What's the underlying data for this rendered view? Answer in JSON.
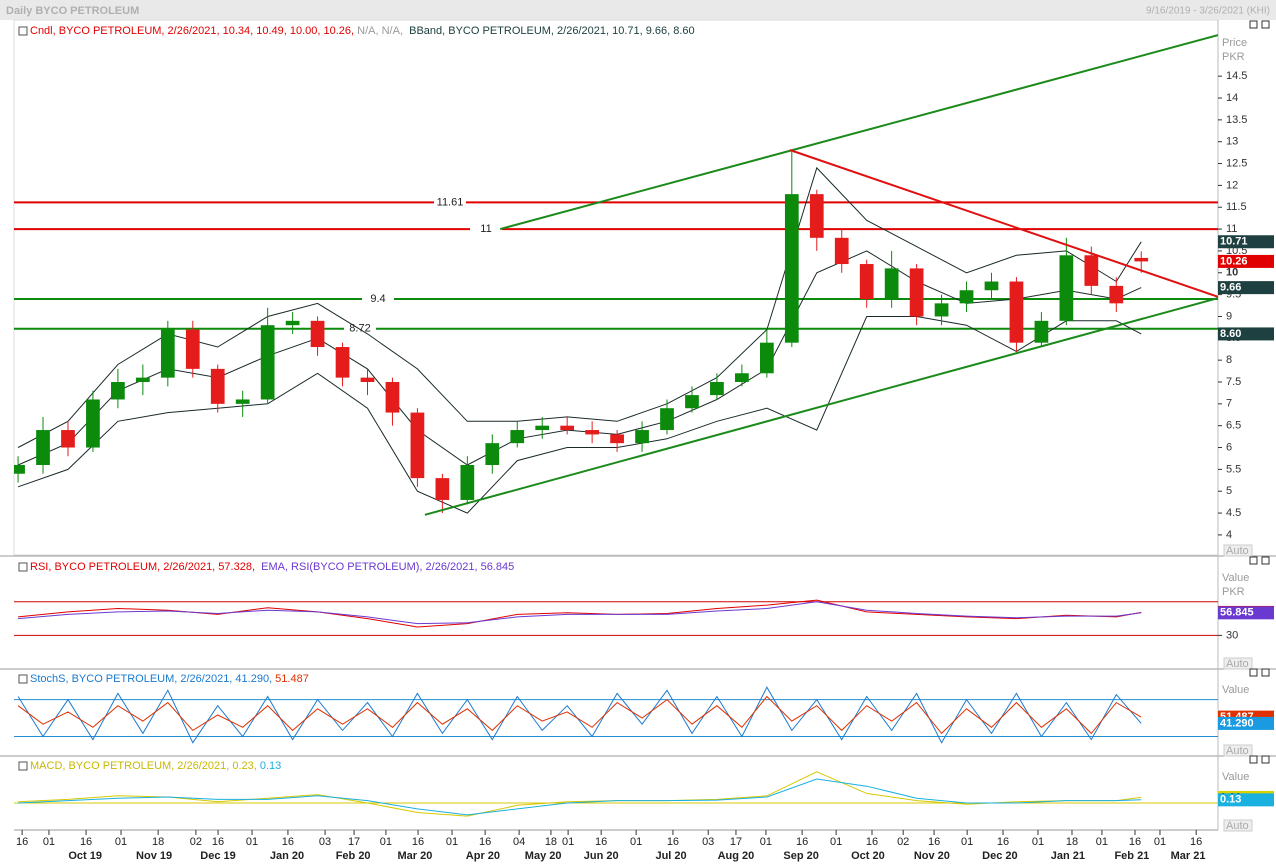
{
  "chart_data": [
    {
      "type": "candlestick",
      "title": "Daily BYCO PETROLEUM",
      "date_range": "9/16/2019 - 3/26/2021 (KHI)",
      "y_label": "Price",
      "y_unit": "PKR",
      "scale_mode": "Auto",
      "legend": [
        {
          "text": "Cndl, BYCO PETROLEUM, 2/26/2021, 10.34, 10.49, 10.00, 10.26,",
          "color": "#e00000"
        },
        {
          "text": " N/A, N/A,",
          "color": "#9a9a9a"
        },
        {
          "text": "  BBand, BYCO PETROLEUM, 2/26/2021, 10.71, 9.66, 8.60",
          "color": "#1e4040"
        }
      ],
      "xlim": [
        -1.3,
        384.6
      ],
      "ylim": [
        3.54,
        15.74
      ],
      "yticks": [
        4,
        4.5,
        5,
        5.5,
        6,
        6.5,
        7,
        7.5,
        8,
        8.5,
        9,
        9.5,
        10,
        10.5,
        11,
        11.5,
        12,
        12.5,
        13,
        13.5,
        14,
        14.5
      ],
      "xticks": [
        {
          "value": 1.3,
          "label": "16"
        },
        {
          "value": 9.9,
          "label": "01"
        },
        {
          "value": 21.8,
          "label": "16"
        },
        {
          "value": 33,
          "label": "01"
        },
        {
          "value": 44.9,
          "label": "18"
        },
        {
          "value": 57,
          "label": "02"
        },
        {
          "value": 64.1,
          "label": "16"
        },
        {
          "value": 75,
          "label": "01"
        },
        {
          "value": 86.5,
          "label": "16"
        },
        {
          "value": 98.4,
          "label": "03"
        },
        {
          "value": 107.7,
          "label": "17"
        },
        {
          "value": 117.9,
          "label": "01"
        },
        {
          "value": 128.2,
          "label": "16"
        },
        {
          "value": 139.1,
          "label": "01"
        },
        {
          "value": 149.7,
          "label": "16"
        },
        {
          "value": 160.6,
          "label": "04"
        },
        {
          "value": 170.8,
          "label": "18"
        },
        {
          "value": 176.3,
          "label": "01"
        },
        {
          "value": 186.9,
          "label": "16"
        },
        {
          "value": 198.1,
          "label": "01"
        },
        {
          "value": 209.9,
          "label": "16"
        },
        {
          "value": 221.2,
          "label": "03"
        },
        {
          "value": 230.1,
          "label": "17"
        },
        {
          "value": 239.7,
          "label": "01"
        },
        {
          "value": 251.3,
          "label": "16"
        },
        {
          "value": 262.2,
          "label": "01"
        },
        {
          "value": 273.7,
          "label": "16"
        },
        {
          "value": 283.7,
          "label": "02"
        },
        {
          "value": 293.6,
          "label": "16"
        },
        {
          "value": 304.2,
          "label": "01"
        },
        {
          "value": 315.7,
          "label": "16"
        },
        {
          "value": 326.9,
          "label": "01"
        },
        {
          "value": 337.8,
          "label": "18"
        },
        {
          "value": 347.4,
          "label": "01"
        },
        {
          "value": 358,
          "label": "16"
        },
        {
          "value": 366,
          "label": "01"
        },
        {
          "value": 377.6,
          "label": "16"
        }
      ],
      "xlabels": [
        {
          "value": 21.5,
          "label": "Oct 19"
        },
        {
          "value": 43.6,
          "label": "Nov 19"
        },
        {
          "value": 64.1,
          "label": "Dec 19"
        },
        {
          "value": 86.2,
          "label": "Jan 20"
        },
        {
          "value": 107.4,
          "label": "Feb 20"
        },
        {
          "value": 127.2,
          "label": "Mar 20"
        },
        {
          "value": 149,
          "label": "Apr 20"
        },
        {
          "value": 168.3,
          "label": "May 20"
        },
        {
          "value": 186.9,
          "label": "Jun 20"
        },
        {
          "value": 209.3,
          "label": "Jul 20"
        },
        {
          "value": 230.1,
          "label": "Aug 20"
        },
        {
          "value": 251,
          "label": "Sep 20"
        },
        {
          "value": 272.4,
          "label": "Oct 20"
        },
        {
          "value": 292.9,
          "label": "Nov 20"
        },
        {
          "value": 314.7,
          "label": "Dec 20"
        },
        {
          "value": 336.5,
          "label": "Jan 21"
        },
        {
          "value": 357,
          "label": "Feb 21"
        },
        {
          "value": 375,
          "label": "Mar 21"
        }
      ],
      "x": [
        0,
        8,
        16,
        24,
        32,
        40,
        48,
        56,
        64,
        72,
        80,
        88,
        96,
        104,
        112,
        120,
        128,
        136,
        144,
        152,
        160,
        168,
        176,
        184,
        192,
        200,
        208,
        216,
        224,
        232,
        240,
        248,
        256,
        264,
        272,
        280,
        288,
        296,
        304,
        312,
        320,
        328,
        336,
        344,
        352,
        360
      ],
      "open": [
        5.4,
        5.6,
        6.4,
        6.0,
        7.1,
        7.5,
        7.6,
        8.7,
        7.8,
        7.0,
        7.1,
        8.8,
        8.9,
        8.3,
        7.6,
        7.5,
        6.8,
        5.3,
        4.8,
        5.6,
        6.1,
        6.4,
        6.5,
        6.4,
        6.3,
        6.1,
        6.4,
        6.9,
        7.2,
        7.5,
        7.7,
        8.4,
        11.8,
        10.8,
        10.2,
        9.4,
        10.1,
        9.0,
        9.3,
        9.6,
        9.8,
        8.4,
        8.9,
        10.4,
        9.7,
        10.34
      ],
      "high": [
        5.8,
        6.7,
        6.6,
        7.3,
        7.8,
        7.9,
        8.9,
        8.9,
        7.9,
        7.3,
        9.2,
        9.1,
        9.0,
        8.4,
        7.8,
        7.6,
        6.9,
        5.4,
        5.8,
        6.3,
        6.6,
        6.7,
        6.7,
        6.6,
        6.4,
        6.6,
        7.1,
        7.4,
        7.7,
        7.9,
        8.7,
        12.8,
        11.9,
        11.0,
        10.3,
        10.5,
        10.2,
        9.5,
        9.8,
        10.0,
        9.9,
        9.1,
        10.8,
        10.6,
        9.9,
        10.49
      ],
      "low": [
        5.2,
        5.4,
        5.8,
        5.9,
        6.9,
        7.2,
        7.4,
        7.6,
        6.8,
        6.7,
        7.0,
        8.6,
        8.1,
        7.4,
        7.2,
        6.5,
        5.1,
        4.5,
        4.7,
        5.4,
        6.0,
        6.2,
        6.3,
        6.1,
        5.9,
        5.9,
        6.3,
        6.8,
        7.1,
        7.4,
        7.6,
        8.3,
        10.5,
        10.0,
        9.2,
        9.2,
        8.8,
        8.8,
        9.1,
        9.4,
        8.2,
        8.3,
        8.8,
        9.5,
        9.1,
        10.0
      ],
      "close": [
        5.6,
        6.4,
        6.0,
        7.1,
        7.5,
        7.6,
        8.7,
        7.8,
        7.0,
        7.1,
        8.8,
        8.9,
        8.3,
        7.6,
        7.5,
        6.8,
        5.3,
        4.8,
        5.6,
        6.1,
        6.4,
        6.5,
        6.4,
        6.3,
        6.1,
        6.4,
        6.9,
        7.2,
        7.5,
        7.7,
        8.4,
        11.8,
        10.8,
        10.2,
        9.4,
        10.1,
        9.0,
        9.3,
        9.6,
        9.8,
        8.4,
        8.9,
        10.4,
        9.7,
        9.3,
        10.26
      ],
      "up_color": "#0b8a0b",
      "down_color": "#e51c1c",
      "overlay": {
        "color": "#1a2a2a",
        "x": [
          0,
          16,
          32,
          48,
          64,
          80,
          96,
          112,
          128,
          144,
          160,
          176,
          192,
          208,
          224,
          240,
          256,
          272,
          288,
          304,
          320,
          336,
          352,
          360
        ],
        "upper": [
          6.0,
          6.6,
          7.9,
          8.6,
          8.3,
          9.0,
          9.3,
          8.6,
          7.8,
          6.6,
          6.6,
          6.7,
          6.6,
          7.0,
          7.6,
          8.7,
          12.4,
          11.2,
          10.6,
          10.0,
          10.4,
          10.5,
          9.8,
          10.71
        ],
        "middle": [
          5.6,
          6.1,
          7.3,
          7.8,
          7.6,
          8.1,
          8.5,
          7.8,
          6.4,
          5.6,
          6.2,
          6.4,
          6.3,
          6.6,
          7.1,
          7.8,
          10.0,
          10.5,
          9.8,
          9.3,
          9.4,
          9.6,
          9.4,
          9.66
        ],
        "lower": [
          5.1,
          5.5,
          6.6,
          6.8,
          6.9,
          7.0,
          7.7,
          6.9,
          5.0,
          4.5,
          5.7,
          6.0,
          6.0,
          6.2,
          6.6,
          6.9,
          6.4,
          9.0,
          9.0,
          8.8,
          8.2,
          8.9,
          8.9,
          8.6
        ]
      },
      "hlines": [
        {
          "value": 11.61,
          "label": "11.61",
          "color": "#e00000"
        },
        {
          "value": 11,
          "label": "11",
          "color": "#e00000"
        },
        {
          "value": 9.4,
          "label": "9.4",
          "color": "#0b8a0b"
        },
        {
          "value": 8.72,
          "label": "8.72",
          "color": "#0b8a0b"
        }
      ],
      "trendlines": [
        {
          "x": [
            154.5,
            384.6
          ],
          "y": [
            11.0,
            15.44
          ],
          "color": "#1a8a1a"
        },
        {
          "x": [
            247.4,
            384.6
          ],
          "y": [
            12.81,
            9.45
          ],
          "color": "#e01010"
        },
        {
          "x": [
            130.4,
            384.6
          ],
          "y": [
            4.46,
            9.42
          ],
          "color": "#1a8a1a"
        }
      ],
      "last_labels": [
        {
          "value": 10.71,
          "label": "10.71",
          "color": "#1e4040"
        },
        {
          "value": 10.26,
          "label": "10.26",
          "color": "#e00000"
        },
        {
          "value": 9.66,
          "label": "9.66",
          "color": "#1e4040"
        },
        {
          "value": 8.6,
          "label": "8.60",
          "color": "#1e4040"
        }
      ]
    },
    {
      "type": "line",
      "y_label": "Value",
      "y_unit": "PKR",
      "scale_mode": "Auto",
      "legend": [
        {
          "text": "RSI, BYCO PETROLEUM, 2/26/2021, 57.328,",
          "color": "#e00000"
        },
        {
          "text": "  EMA, RSI(BYCO PETROLEUM), 2/26/2021, 56.845",
          "color": "#6a3ad0"
        }
      ],
      "xlim": [
        -1.3,
        384.6
      ],
      "ylim": [
        -8.8,
        122.1
      ],
      "yticks": [
        30
      ],
      "levels": [
        70,
        30
      ],
      "level_color": "#d00000",
      "x": [
        0,
        16,
        32,
        48,
        64,
        80,
        96,
        112,
        128,
        144,
        160,
        176,
        192,
        208,
        224,
        240,
        256,
        272,
        288,
        304,
        320,
        336,
        352,
        360
      ],
      "series": [
        {
          "color": "#e00000",
          "values": [
            52,
            58,
            62,
            60,
            55,
            63,
            58,
            50,
            40,
            44,
            55,
            57,
            55,
            56,
            62,
            66,
            72,
            58,
            55,
            52,
            50,
            54,
            52,
            57.328
          ]
        },
        {
          "color": "#6a3ad0",
          "values": [
            50,
            55,
            58,
            59,
            56,
            60,
            58,
            52,
            44,
            45,
            52,
            55,
            55,
            55,
            59,
            62,
            70,
            60,
            56,
            53,
            51,
            53,
            53,
            56.845
          ]
        }
      ],
      "last_labels": [
        {
          "value": 57.328,
          "label": "57.328",
          "color": "#e00000"
        },
        {
          "value": 56.845,
          "label": "56.845",
          "color": "#6a3ad0"
        }
      ]
    },
    {
      "type": "line",
      "y_label": "Value",
      "scale_mode": "Auto",
      "legend": [
        {
          "text": "StochS, BYCO PETROLEUM, 2/26/2021, 41.290,",
          "color": "#1a7ad0"
        },
        {
          "text": " 51.487",
          "color": "#e03000"
        }
      ],
      "xlim": [
        -1.3,
        384.6
      ],
      "ylim": [
        -10,
        128
      ],
      "levels": [
        80,
        20
      ],
      "level_color": "#2090d0",
      "x": [
        0,
        8,
        16,
        24,
        32,
        40,
        48,
        56,
        64,
        72,
        80,
        88,
        96,
        104,
        112,
        120,
        128,
        136,
        144,
        152,
        160,
        168,
        176,
        184,
        192,
        200,
        208,
        216,
        224,
        232,
        240,
        248,
        256,
        264,
        272,
        280,
        288,
        296,
        304,
        312,
        320,
        328,
        336,
        344,
        352,
        360
      ],
      "series": [
        {
          "color": "#1a7ad0",
          "values": [
            85,
            20,
            80,
            15,
            90,
            25,
            95,
            10,
            70,
            20,
            85,
            15,
            80,
            30,
            75,
            20,
            90,
            25,
            80,
            15,
            85,
            30,
            70,
            20,
            90,
            40,
            95,
            25,
            85,
            20,
            100,
            30,
            80,
            15,
            85,
            30,
            90,
            10,
            80,
            25,
            90,
            20,
            75,
            15,
            88,
            41.29
          ]
        },
        {
          "color": "#e03000",
          "values": [
            70,
            40,
            60,
            35,
            70,
            45,
            75,
            30,
            55,
            35,
            70,
            30,
            65,
            40,
            65,
            35,
            75,
            40,
            65,
            30,
            70,
            45,
            60,
            35,
            75,
            50,
            80,
            40,
            70,
            35,
            85,
            45,
            70,
            30,
            70,
            45,
            75,
            25,
            65,
            35,
            75,
            35,
            65,
            25,
            75,
            51.487
          ]
        }
      ],
      "last_labels": [
        {
          "value": 51.487,
          "label": "51.487",
          "color": "#e03000"
        },
        {
          "value": 41.29,
          "label": "41.290",
          "color": "#1a9ae0"
        }
      ]
    },
    {
      "type": "line",
      "y_label": "Value",
      "scale_mode": "Auto",
      "legend": [
        {
          "text": "MACD, BYCO PETROLEUM, 2/26/2021, 0.23,",
          "color": "#c8b800"
        },
        {
          "text": " 0.13",
          "color": "#1ab0e0"
        }
      ],
      "xlim": [
        -1.3,
        384.6
      ],
      "ylim": [
        -1.13,
        1.92
      ],
      "levels": [
        0
      ],
      "level_color": "#d8c800",
      "x": [
        0,
        16,
        32,
        48,
        64,
        80,
        96,
        112,
        128,
        144,
        160,
        176,
        192,
        208,
        224,
        240,
        256,
        272,
        288,
        304,
        320,
        336,
        352,
        360
      ],
      "series": [
        {
          "color": "#d8c800",
          "values": [
            0.05,
            0.15,
            0.3,
            0.25,
            0.05,
            0.2,
            0.35,
            0.0,
            -0.4,
            -0.55,
            -0.1,
            0.05,
            0.1,
            0.1,
            0.15,
            0.3,
            1.3,
            0.4,
            0.1,
            -0.05,
            0.05,
            0.1,
            0.1,
            0.23
          ]
        },
        {
          "color": "#1ab0e0",
          "values": [
            0.0,
            0.1,
            0.2,
            0.25,
            0.15,
            0.15,
            0.3,
            0.1,
            -0.25,
            -0.5,
            -0.25,
            0.0,
            0.1,
            0.1,
            0.12,
            0.25,
            1.0,
            0.7,
            0.2,
            0.0,
            0.0,
            0.1,
            0.1,
            0.13
          ]
        }
      ],
      "last_labels": [
        {
          "value": 0.23,
          "label": "0.23",
          "color": "#d8d000"
        },
        {
          "value": 0.13,
          "label": "0.13",
          "color": "#1ab0e0"
        }
      ]
    }
  ]
}
